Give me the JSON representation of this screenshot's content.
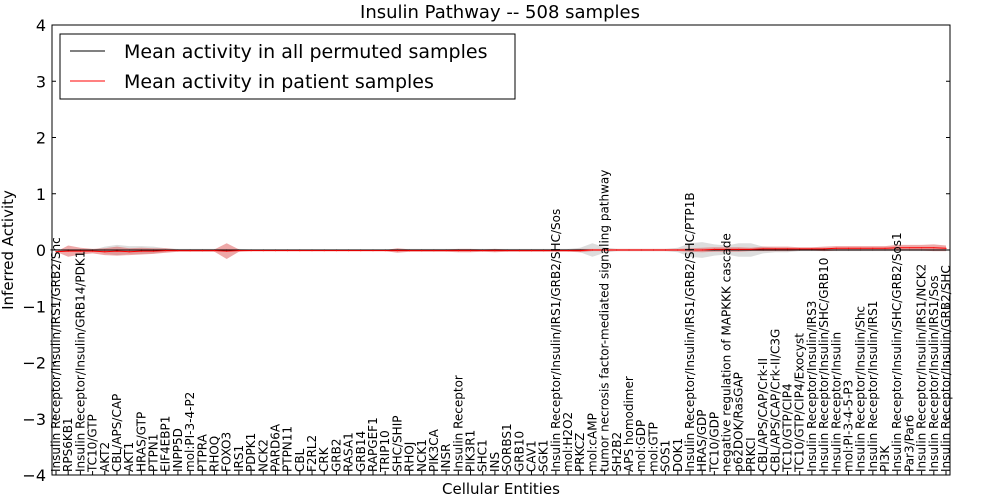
{
  "chart_data": {
    "type": "line",
    "title": "Insulin Pathway -- 508 samples",
    "xlabel": "Cellular Entities",
    "ylabel": "Inferred Activity",
    "ylim": [
      -4,
      4
    ],
    "yticks": [
      -4,
      -3,
      -2,
      -1,
      0,
      1,
      2,
      3,
      4
    ],
    "legend_position": "top-left",
    "categories": [
      "Insulin Receptor/Insulin/IRS1/GRB2/Shc",
      "RPS6KB1",
      "Insulin Receptor/Insulin/GRB14/PDK1",
      "TC10/GTP",
      "AKT2",
      "CBL/APS/CAP",
      "AKT1",
      "HRAS/GTP",
      "PTPN1",
      "EIF4EBP1",
      "INPP5D",
      "mol:PI-3-4-P2",
      "PTPRA",
      "RHOQ",
      "FOXO3",
      "IRS1",
      "PDPK1",
      "NCK2",
      "PARD6A",
      "PTPN11",
      "CBL",
      "F2RL2",
      "CRK",
      "GRB2",
      "RASA1",
      "GRB14",
      "RAPGEF1",
      "TRIP10",
      "SHC/SHIP",
      "RHOJ",
      "NCK1",
      "PIK3CA",
      "INSR",
      "Insulin Receptor",
      "PIK3R1",
      "SHC1",
      "INS",
      "SORBS1",
      "GRB10",
      "CAV1",
      "SGK1",
      "Insulin Receptor/Insulin/IRS1/GRB2/SHC/Sos",
      "mol:H2O2",
      "PRKCZ",
      "mol:cAMP",
      "tumor necrosis factor-mediated signaling pathway",
      "SH2B2",
      "APS homodimer",
      "mol:GDP",
      "mol:GTP",
      "SOS1",
      "DOK1",
      "Insulin Receptor/Insulin/IRS1/GRB2/SHC/PTP1B",
      "HRAS/GDP",
      "TC10/GDP",
      "negative regulation of MAPKKK cascade",
      "p62DOK/RasGAP",
      "PRKCI",
      "CBL/APS/CAP/Crk-II",
      "CBL/APS/CAP/Crk-II/C3G",
      "TC10/GTP/CIP4",
      "TC10/GTP/CIP4/Exocyst",
      "Insulin Receptor/Insulin/IRS3",
      "Insulin Receptor/Insulin/SHC/GRB10",
      "Insulin Receptor/Insulin",
      "mol:PI-3-4-5-P3",
      "Insulin Receptor/Insulin/Shc",
      "Insulin Receptor/Insulin/IRS1",
      "PI3K",
      "Insulin Receptor/Insulin/SHC/GRB2/Sos1",
      "Par3/Par6",
      "Insulin Receptor/Insulin/IRS1/NCK2",
      "Insulin Receptor/Insulin/IRS1/Sos",
      "Insulin Receptor/Insulin/GRB2/SHC"
    ],
    "series": [
      {
        "name": "Mean activity in all permuted samples",
        "color": "#000000",
        "values": [
          0,
          0,
          0,
          0,
          0,
          0,
          0,
          0,
          0,
          0,
          0,
          0,
          0,
          0,
          0,
          0,
          0,
          0,
          0,
          0,
          0,
          0,
          0,
          0,
          0,
          0,
          0,
          0,
          0,
          0,
          0,
          0,
          0,
          0,
          0,
          0,
          0,
          0,
          0,
          0,
          0,
          0,
          0,
          0,
          0,
          0,
          0,
          0,
          0,
          0,
          0,
          0,
          0,
          0,
          0,
          0,
          0,
          0,
          0,
          0,
          0,
          0,
          0,
          0,
          0,
          0,
          0,
          0,
          0,
          0,
          0,
          0,
          0,
          0
        ]
      },
      {
        "name": "Mean activity in patient samples",
        "color": "#ff0000",
        "values": [
          -0.03,
          -0.02,
          -0.02,
          -0.02,
          -0.03,
          -0.02,
          -0.03,
          -0.02,
          -0.02,
          -0.01,
          -0.01,
          -0.01,
          -0.01,
          -0.01,
          -0.02,
          -0.01,
          -0.01,
          -0.01,
          -0.01,
          -0.01,
          -0.01,
          -0.01,
          -0.01,
          -0.01,
          -0.01,
          -0.01,
          -0.01,
          -0.01,
          -0.01,
          -0.01,
          -0.01,
          -0.01,
          -0.01,
          -0.01,
          -0.01,
          -0.01,
          -0.01,
          -0.01,
          -0.01,
          -0.01,
          -0.01,
          -0.01,
          -0.01,
          -0.01,
          0,
          0,
          0,
          0,
          0,
          0,
          0,
          0,
          0,
          0,
          0.01,
          0.01,
          0.01,
          0.01,
          0.02,
          0.02,
          0.02,
          0.02,
          0.02,
          0.02,
          0.03,
          0.03,
          0.03,
          0.03,
          0.03,
          0.04,
          0.04,
          0.04,
          0.04,
          0.03
        ]
      }
    ],
    "bands": [
      {
        "series": "Mean activity in all permuted samples",
        "fill": "#bbbbbb",
        "halfwidth": [
          0,
          0,
          0,
          0,
          0.06,
          0.09,
          0.07,
          0.07,
          0.06,
          0.03,
          0.02,
          0.02,
          0.02,
          0.02,
          0.02,
          0.02,
          0.01,
          0.01,
          0.01,
          0.01,
          0.01,
          0.01,
          0.01,
          0.01,
          0.01,
          0.01,
          0.01,
          0.01,
          0.02,
          0.02,
          0.02,
          0.02,
          0.02,
          0.02,
          0.02,
          0.02,
          0.02,
          0.02,
          0.02,
          0.02,
          0.02,
          0.02,
          0.02,
          0.04,
          0.12,
          0.05,
          0.02,
          0.02,
          0.02,
          0.02,
          0.02,
          0.04,
          0.12,
          0.14,
          0.1,
          0.08,
          0.12,
          0.12,
          0.06,
          0.04,
          0.04,
          0.02,
          0.02,
          0.02,
          0.02,
          0.02,
          0.02,
          0.02,
          0.02,
          0.02,
          0.02,
          0.02,
          0.02,
          0.02
        ]
      },
      {
        "series": "Mean activity in patient samples",
        "fill": "#e06060",
        "halfwidth": [
          0,
          0.1,
          0.06,
          0.04,
          0.06,
          0.08,
          0.06,
          0.06,
          0.05,
          0.04,
          0.02,
          0.02,
          0.02,
          0.02,
          0.14,
          0.02,
          0.01,
          0.01,
          0.01,
          0.01,
          0.01,
          0.01,
          0.01,
          0.01,
          0.01,
          0.01,
          0.01,
          0.01,
          0.04,
          0.02,
          0.02,
          0.02,
          0.02,
          0.03,
          0.03,
          0.02,
          0.03,
          0.02,
          0.02,
          0.02,
          0.02,
          0.02,
          0.02,
          0.03,
          0.02,
          0.02,
          0.02,
          0.02,
          0.02,
          0.02,
          0.02,
          0.02,
          0.03,
          0.04,
          0.04,
          0.04,
          0.04,
          0.03,
          0.04,
          0.04,
          0.04,
          0.03,
          0.03,
          0.04,
          0.04,
          0.04,
          0.04,
          0.04,
          0.04,
          0.05,
          0.05,
          0.05,
          0.06,
          0.05
        ]
      }
    ]
  }
}
